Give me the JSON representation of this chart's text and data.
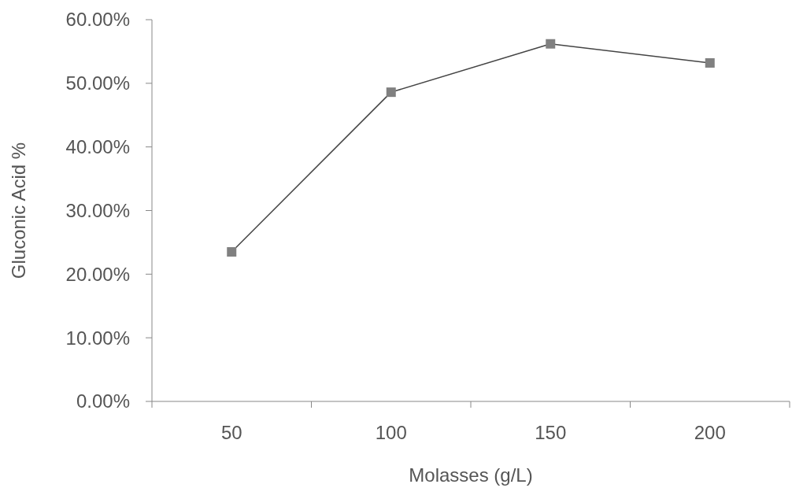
{
  "chart_data": {
    "type": "line",
    "xlabel": "Molasses (g/L)",
    "ylabel": "Gluconic Acid %",
    "categories": [
      "50",
      "100",
      "150",
      "200"
    ],
    "series": [
      {
        "color": "#808080",
        "values": [
          23.5,
          48.6,
          56.2,
          53.2
        ]
      }
    ],
    "ylim": [
      0,
      60
    ],
    "yticks": [
      {
        "value": 0,
        "label": "0.00%"
      },
      {
        "value": 10,
        "label": "10.00%"
      },
      {
        "value": 20,
        "label": "20.00%"
      },
      {
        "value": 30,
        "label": "30.00%"
      },
      {
        "value": 40,
        "label": "40.00%"
      },
      {
        "value": 50,
        "label": "50.00%"
      },
      {
        "value": 60,
        "label": "60.00%"
      }
    ],
    "marker": "square",
    "line_style": "solid",
    "grid": false
  }
}
